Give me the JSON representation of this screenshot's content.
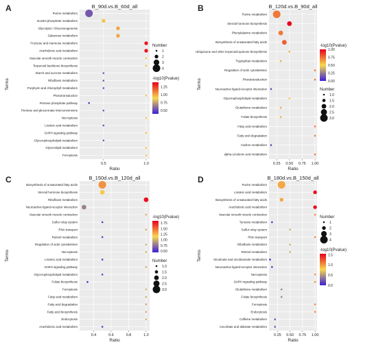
{
  "chart_data": [
    {
      "type": "scatter",
      "panel_label": "A",
      "title": "B_90d.vs.B_60d_all",
      "xlabel": "Ratio",
      "ylabel": "Terms",
      "xlim": [
        0.22,
        1.04
      ],
      "xticks": [
        "0.5",
        "1.0"
      ],
      "xtick_values": [
        0.5,
        1.0
      ],
      "grid": true,
      "terms": [
        "Purine metabolism",
        "Inositol phosphate metabolism",
        "Glycolysis / Gluconeogenesis",
        "Galactose metabolism",
        "Fructose and mannose metabolism",
        "Arachidonic acid metabolism",
        "Vascular smooth muscle contraction",
        "Terpenoid backbone biosynthesis",
        "Starch and sucrose metabolism",
        "Riboflavin metabolism",
        "Porphyrin and chlorophyll metabolism",
        "Phototransduction",
        "Pentose phosphate pathway",
        "Pentose and glucuronate interconversions",
        "Necroptosis",
        "Linoleic acid metabolism",
        "GnRH signaling pathway",
        "Glycerophospholipid metabolism",
        "Glycerolipid metabolism",
        "Ferroptosis"
      ],
      "points": [
        {
          "term": "Purine metabolism",
          "ratio": 0.33,
          "number": 4,
          "neglog10p": 0.55
        },
        {
          "term": "Inositol phosphate metabolism",
          "ratio": 0.5,
          "number": 2,
          "neglog10p": 0.95
        },
        {
          "term": "Glycolysis / Gluconeogenesis",
          "ratio": 0.67,
          "number": 2,
          "neglog10p": 1.02
        },
        {
          "term": "Galactose metabolism",
          "ratio": 0.67,
          "number": 2,
          "neglog10p": 1.02
        },
        {
          "term": "Fructose and mannose metabolism",
          "ratio": 1.0,
          "number": 2,
          "neglog10p": 1.35
        },
        {
          "term": "Arachidonic acid metabolism",
          "ratio": 1.0,
          "number": 2,
          "neglog10p": 1.35
        },
        {
          "term": "Vascular smooth muscle contraction",
          "ratio": 1.0,
          "number": 1,
          "neglog10p": 0.95
        },
        {
          "term": "Terpenoid backbone biosynthesis",
          "ratio": 1.0,
          "number": 1,
          "neglog10p": 0.95
        },
        {
          "term": "Starch and sucrose metabolism",
          "ratio": 0.5,
          "number": 1,
          "neglog10p": 0.55
        },
        {
          "term": "Riboflavin metabolism",
          "ratio": 0.5,
          "number": 1,
          "neglog10p": 0.55
        },
        {
          "term": "Porphyrin and chlorophyll metabolism",
          "ratio": 0.5,
          "number": 1,
          "neglog10p": 0.55
        },
        {
          "term": "Phototransduction",
          "ratio": 1.0,
          "number": 1,
          "neglog10p": 0.95
        },
        {
          "term": "Pentose phosphate pathway",
          "ratio": 0.33,
          "number": 1,
          "neglog10p": 0.45
        },
        {
          "term": "Pentose and glucuronate interconversions",
          "ratio": 0.5,
          "number": 1,
          "neglog10p": 0.55
        },
        {
          "term": "Necroptosis",
          "ratio": 1.0,
          "number": 1,
          "neglog10p": 0.95
        },
        {
          "term": "Linoleic acid metabolism",
          "ratio": 0.5,
          "number": 1,
          "neglog10p": 0.55
        },
        {
          "term": "GnRH signaling pathway",
          "ratio": 1.0,
          "number": 1,
          "neglog10p": 0.95
        },
        {
          "term": "Glycerophospholipid metabolism",
          "ratio": 0.5,
          "number": 1,
          "neglog10p": 0.55
        },
        {
          "term": "Glycerolipid metabolism",
          "ratio": 1.0,
          "number": 1,
          "neglog10p": 0.95
        },
        {
          "term": "Ferroptosis",
          "ratio": 1.0,
          "number": 1,
          "neglog10p": 0.95
        }
      ],
      "color_range": [
        0.4,
        1.4
      ],
      "size_range": [
        1,
        4
      ],
      "size_legend": {
        "title": "Number",
        "labels": [
          "1",
          "2",
          "3",
          "4"
        ],
        "values": [
          1,
          2,
          3,
          4
        ]
      },
      "color_legend": {
        "title": "-log10(Pvalue)",
        "labels": [
          "1.25",
          "1.00",
          "0.75",
          "0.50"
        ],
        "values": [
          1.25,
          1.0,
          0.75,
          0.5
        ]
      },
      "legend_order": "size-first"
    },
    {
      "type": "scatter",
      "panel_label": "B",
      "title": "B_120d.vs.B_90d_all",
      "xlabel": "Ratio",
      "ylabel": "Terms",
      "xlim": [
        0.1,
        1.04
      ],
      "xticks": [
        "0.25",
        "0.50",
        "0.75",
        "1.00"
      ],
      "xtick_values": [
        0.25,
        0.5,
        0.75,
        1.0
      ],
      "grid": true,
      "terms": [
        "Purine metabolism",
        "Steroid hormone biosynthesis",
        "Phenylalanine metabolism",
        "Biosynthesis of unsaturated fatty acids",
        "Ubiquinone and other terpenoid-quinone biosynthesis",
        "Tryptophan metabolism",
        "Regulation of actin cytoskeleton",
        "Phototransduction",
        "Neuroactive ligand-receptor interaction",
        "Glycerophospholipid metabolism",
        "Glutathione metabolism",
        "Folate biosynthesis",
        "Fatty acid metabolism",
        "Fatty acid degradation",
        "Carbon metabolism",
        "alpha-Linolenic acid metabolism"
      ],
      "points": [
        {
          "term": "Purine metabolism",
          "ratio": 0.25,
          "number": 3,
          "neglog10p": 0.72
        },
        {
          "term": "Steroid hormone biosynthesis",
          "ratio": 0.5,
          "number": 2,
          "neglog10p": 1.0
        },
        {
          "term": "Phenylalanine metabolism",
          "ratio": 0.33,
          "number": 2,
          "neglog10p": 0.72
        },
        {
          "term": "Biosynthesis of unsaturated fatty acids",
          "ratio": 0.4,
          "number": 2,
          "neglog10p": 0.78
        },
        {
          "term": "Ubiquinone and other terpenoid-quinone biosynthesis",
          "ratio": 0.5,
          "number": 1,
          "neglog10p": 0.6
        },
        {
          "term": "Tryptophan metabolism",
          "ratio": 0.33,
          "number": 1,
          "neglog10p": 0.6
        },
        {
          "term": "Regulation of actin cytoskeleton",
          "ratio": 1.0,
          "number": 1,
          "neglog10p": 0.72
        },
        {
          "term": "Phototransduction",
          "ratio": 1.0,
          "number": 1,
          "neglog10p": 0.72
        },
        {
          "term": "Neuroactive ligand-receptor interaction",
          "ratio": 0.14,
          "number": 1,
          "neglog10p": 0.1
        },
        {
          "term": "Glycerophospholipid metabolism",
          "ratio": 0.5,
          "number": 1,
          "neglog10p": 0.55
        },
        {
          "term": "Glutathione metabolism",
          "ratio": 0.33,
          "number": 1,
          "neglog10p": 0.6
        },
        {
          "term": "Folate biosynthesis",
          "ratio": 0.33,
          "number": 1,
          "neglog10p": 0.6
        },
        {
          "term": "Fatty acid metabolism",
          "ratio": 1.0,
          "number": 1,
          "neglog10p": 0.72
        },
        {
          "term": "Fatty acid degradation",
          "ratio": 1.0,
          "number": 1,
          "neglog10p": 0.72
        },
        {
          "term": "Carbon metabolism",
          "ratio": 0.14,
          "number": 1,
          "neglog10p": 0.1
        },
        {
          "term": "alpha-Linolenic acid metabolism",
          "ratio": 1.0,
          "number": 1,
          "neglog10p": 0.72
        }
      ],
      "color_range": [
        0.0,
        1.0
      ],
      "size_range": [
        1,
        3
      ],
      "size_legend": {
        "title": "Number",
        "labels": [
          "1.0",
          "1.5",
          "2.0",
          "2.5",
          "3.0"
        ],
        "values": [
          1.0,
          1.5,
          2.0,
          2.5,
          3.0
        ]
      },
      "color_legend": {
        "title": "-log10(Pvalue)",
        "labels": [
          "1.00",
          "0.75",
          "0.50",
          "0.25",
          "0.00"
        ],
        "values": [
          1.0,
          0.75,
          0.5,
          0.25,
          0.0
        ]
      },
      "legend_order": "color-first"
    },
    {
      "type": "scatter",
      "panel_label": "C",
      "title": "B_150d.vs.B_120d_all",
      "xlabel": "Ratio",
      "ylabel": "Terms",
      "xlim": [
        0.24,
        1.04
      ],
      "xticks": [
        "0.4",
        "0.6",
        "0.8",
        "1.0"
      ],
      "xtick_values": [
        0.4,
        0.6,
        0.8,
        1.0
      ],
      "grid": true,
      "terms": [
        "Biosynthesis of unsaturated fatty acids",
        "Steroid hormone biosynthesis",
        "Riboflavin metabolism",
        "Neuroactive ligand-receptor interaction",
        "Vascular smooth muscle contraction",
        "Sulfur relay system",
        "RNA transport",
        "Retinol metabolism",
        "Regulation of actin cytoskeleton",
        "Necroptosis",
        "Linoleic acid metabolism",
        "GnRH signaling pathway",
        "Glycerophospholipid metabolism",
        "Folate biosynthesis",
        "Ferroptosis",
        "Fatty acid metabolism",
        "Fatty acid degradation",
        "Fatty acid biosynthesis",
        "Endocytosis",
        "Arachidonic acid metabolism"
      ],
      "points": [
        {
          "term": "Biosynthesis of unsaturated fatty acids",
          "ratio": 0.5,
          "number": 3,
          "neglog10p": 1.38
        },
        {
          "term": "Steroid hormone biosynthesis",
          "ratio": 0.5,
          "number": 2,
          "neglog10p": 1.2
        },
        {
          "term": "Riboflavin metabolism",
          "ratio": 1.0,
          "number": 2,
          "neglog10p": 1.8
        },
        {
          "term": "Neuroactive ligand-receptor interaction",
          "ratio": 0.29,
          "number": 2,
          "neglog10p": 0.82
        },
        {
          "term": "Vascular smooth muscle contraction",
          "ratio": 1.0,
          "number": 1,
          "neglog10p": 1.0
        },
        {
          "term": "Sulfur relay system",
          "ratio": 0.5,
          "number": 1,
          "neglog10p": 0.55
        },
        {
          "term": "RNA transport",
          "ratio": 1.0,
          "number": 1,
          "neglog10p": 1.0
        },
        {
          "term": "Retinol metabolism",
          "ratio": 0.5,
          "number": 1,
          "neglog10p": 0.55
        },
        {
          "term": "Regulation of actin cytoskeleton",
          "ratio": 1.0,
          "number": 1,
          "neglog10p": 1.0
        },
        {
          "term": "Necroptosis",
          "ratio": 1.0,
          "number": 1,
          "neglog10p": 1.0
        },
        {
          "term": "Linoleic acid metabolism",
          "ratio": 0.5,
          "number": 1,
          "neglog10p": 0.55
        },
        {
          "term": "GnRH signaling pathway",
          "ratio": 1.0,
          "number": 1,
          "neglog10p": 1.0
        },
        {
          "term": "Glycerophospholipid metabolism",
          "ratio": 0.5,
          "number": 1,
          "neglog10p": 0.55
        },
        {
          "term": "Folate biosynthesis",
          "ratio": 0.33,
          "number": 1,
          "neglog10p": 0.5
        },
        {
          "term": "Ferroptosis",
          "ratio": 1.0,
          "number": 1,
          "neglog10p": 1.0
        },
        {
          "term": "Fatty acid metabolism",
          "ratio": 1.0,
          "number": 1,
          "neglog10p": 1.0
        },
        {
          "term": "Fatty acid degradation",
          "ratio": 1.0,
          "number": 1,
          "neglog10p": 1.0
        },
        {
          "term": "Fatty acid biosynthesis",
          "ratio": 1.0,
          "number": 1,
          "neglog10p": 1.0
        },
        {
          "term": "Endocytosis",
          "ratio": 1.0,
          "number": 1,
          "neglog10p": 1.0
        },
        {
          "term": "Arachidonic acid metabolism",
          "ratio": 0.5,
          "number": 1,
          "neglog10p": 0.55
        }
      ],
      "color_range": [
        0.45,
        1.85
      ],
      "size_range": [
        1,
        3
      ],
      "size_legend": {
        "title": "Number",
        "labels": [
          "1.0",
          "1.5",
          "2.0",
          "2.5",
          "3.0"
        ],
        "values": [
          1.0,
          1.5,
          2.0,
          2.5,
          3.0
        ]
      },
      "color_legend": {
        "title": "-log10(Pvalue)",
        "labels": [
          "1.75",
          "1.50",
          "1.25",
          "1.00",
          "0.75",
          "0.50"
        ],
        "values": [
          1.75,
          1.5,
          1.25,
          1.0,
          0.75,
          0.5
        ]
      },
      "legend_order": "color-first"
    },
    {
      "type": "scatter",
      "panel_label": "D",
      "title": "B_180d.vs.B_150d_all",
      "xlabel": "Ratio",
      "ylabel": "Terms",
      "xlim": [
        0.08,
        1.04
      ],
      "xticks": [
        "0.25",
        "0.50",
        "0.75",
        "1.00"
      ],
      "xtick_values": [
        0.25,
        0.5,
        0.75,
        1.0
      ],
      "grid": true,
      "terms": [
        "Purine metabolism",
        "Linoleic acid metabolism",
        "Biosynthesis of unsaturated fatty acids",
        "Arachidonic acid metabolism",
        "Vascular smooth muscle contraction",
        "Tyrosine metabolism",
        "Sulfur relay system",
        "RNA transport",
        "Riboflavin metabolism",
        "Retinol metabolism",
        "Nicotinate and nicotinamide metabolism",
        "Neuroactive ligand-receptor interaction",
        "Necroptosis",
        "GnRH signaling pathway",
        "Glutathione metabolism",
        "Folate biosynthesis",
        "Ferroptosis",
        "Endocytosis",
        "Caffeine metabolism",
        "Ascorbate and aldarate metabolism"
      ],
      "points": [
        {
          "term": "Purine metabolism",
          "ratio": 0.33,
          "number": 4,
          "neglog10p": 0.95
        },
        {
          "term": "Linoleic acid metabolism",
          "ratio": 1.0,
          "number": 2,
          "neglog10p": 1.5
        },
        {
          "term": "Biosynthesis of unsaturated fatty acids",
          "ratio": 0.33,
          "number": 2,
          "neglog10p": 0.95
        },
        {
          "term": "Arachidonic acid metabolism",
          "ratio": 1.0,
          "number": 2,
          "neglog10p": 1.5
        },
        {
          "term": "Vascular smooth muscle contraction",
          "ratio": 1.0,
          "number": 1,
          "neglog10p": 1.05
        },
        {
          "term": "Tyrosine metabolism",
          "ratio": 0.14,
          "number": 1,
          "neglog10p": 0.1
        },
        {
          "term": "Sulfur relay system",
          "ratio": 0.5,
          "number": 1,
          "neglog10p": 0.6
        },
        {
          "term": "RNA transport",
          "ratio": 1.0,
          "number": 1,
          "neglog10p": 1.05
        },
        {
          "term": "Riboflavin metabolism",
          "ratio": 0.5,
          "number": 1,
          "neglog10p": 0.6
        },
        {
          "term": "Retinol metabolism",
          "ratio": 0.5,
          "number": 1,
          "neglog10p": 0.6
        },
        {
          "term": "Nicotinate and nicotinamide metabolism",
          "ratio": 0.1,
          "number": 1,
          "neglog10p": 0.05
        },
        {
          "term": "Neuroactive ligand-receptor interaction",
          "ratio": 0.14,
          "number": 1,
          "neglog10p": 0.1
        },
        {
          "term": "Necroptosis",
          "ratio": 1.0,
          "number": 1,
          "neglog10p": 1.05
        },
        {
          "term": "GnRH signaling pathway",
          "ratio": 1.0,
          "number": 1,
          "neglog10p": 1.05
        },
        {
          "term": "Glutathione metabolism",
          "ratio": 0.33,
          "number": 1,
          "neglog10p": 0.4
        },
        {
          "term": "Folate biosynthesis",
          "ratio": 0.33,
          "number": 1,
          "neglog10p": 0.4
        },
        {
          "term": "Ferroptosis",
          "ratio": 1.0,
          "number": 1,
          "neglog10p": 1.05
        },
        {
          "term": "Endocytosis",
          "ratio": 1.0,
          "number": 1,
          "neglog10p": 1.05
        },
        {
          "term": "Caffeine metabolism",
          "ratio": 0.2,
          "number": 1,
          "neglog10p": 0.2
        },
        {
          "term": "Ascorbate and aldarate metabolism",
          "ratio": 0.2,
          "number": 1,
          "neglog10p": 0.2
        }
      ],
      "color_range": [
        0.0,
        1.55
      ],
      "size_range": [
        1,
        4
      ],
      "size_legend": {
        "title": "Number",
        "labels": [
          "1",
          "2",
          "3",
          "4"
        ],
        "values": [
          1,
          2,
          3,
          4
        ]
      },
      "color_legend": {
        "title": "-log10(Pvalue)",
        "labels": [
          "1.5",
          "1.0",
          "0.5",
          "0.0"
        ],
        "values": [
          1.5,
          1.0,
          0.5,
          0.0
        ]
      },
      "legend_order": "size-first"
    }
  ],
  "colors": {
    "panel_background": "#ebebeb",
    "grid": "#ffffff",
    "low": "#3b1fd6",
    "mid": "#f7d84e",
    "high": "#e8001c",
    "text": "#222222"
  }
}
